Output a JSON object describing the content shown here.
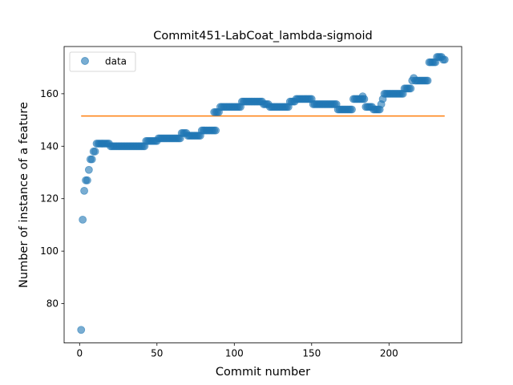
{
  "chart_data": {
    "type": "scatter",
    "title": "Commit451-LabCoat_lambda-sigmoid",
    "xlabel": "Commit number",
    "ylabel": "Number of instance of a feature",
    "xlim": [
      -10,
      247
    ],
    "ylim": [
      65,
      178
    ],
    "xticks": [
      0,
      50,
      100,
      150,
      200
    ],
    "yticks": [
      80,
      100,
      120,
      140,
      160
    ],
    "grid": false,
    "legend": {
      "placement": "top-left",
      "entries": [
        "data"
      ]
    },
    "series": [
      {
        "name": "data",
        "kind": "points",
        "color": "#1f77b4",
        "opacity": 0.6,
        "segments": [
          {
            "x": [
              1
            ],
            "y": 70
          },
          {
            "x": [
              2
            ],
            "y": 112
          },
          {
            "x": [
              3
            ],
            "y": 123
          },
          {
            "x": [
              4,
              5
            ],
            "y": 127
          },
          {
            "x": [
              6
            ],
            "y": 131
          },
          {
            "x": [
              7,
              8
            ],
            "y": 135
          },
          {
            "x": [
              9,
              10
            ],
            "y": 138
          },
          {
            "x": [
              11,
              19
            ],
            "y": 141
          },
          {
            "x": [
              20,
              42
            ],
            "y": 140
          },
          {
            "x": [
              43,
              50
            ],
            "y": 142
          },
          {
            "x": [
              51,
              65
            ],
            "y": 143
          },
          {
            "x": [
              66,
              69
            ],
            "y": 145
          },
          {
            "x": [
              70,
              78
            ],
            "y": 144
          },
          {
            "x": [
              79,
              88
            ],
            "y": 146
          },
          {
            "x": [
              87,
              90
            ],
            "y": 153
          },
          {
            "x": [
              91,
              104
            ],
            "y": 155
          },
          {
            "x": [
              105,
              118
            ],
            "y": 157
          },
          {
            "x": [
              119,
              122
            ],
            "y": 156
          },
          {
            "x": [
              123,
              135
            ],
            "y": 155
          },
          {
            "x": [
              136,
              139
            ],
            "y": 157
          },
          {
            "x": [
              140,
              150
            ],
            "y": 158
          },
          {
            "x": [
              151,
              166
            ],
            "y": 156
          },
          {
            "x": [
              167,
              176
            ],
            "y": 154
          },
          {
            "x": [
              177,
              184
            ],
            "y": 158
          },
          {
            "x": [
              183
            ],
            "y": 159
          },
          {
            "x": [
              185,
              189
            ],
            "y": 155
          },
          {
            "x": [
              190,
              194
            ],
            "y": 154
          },
          {
            "x": [
              195
            ],
            "y": 156
          },
          {
            "x": [
              196
            ],
            "y": 158
          },
          {
            "x": [
              197,
              209
            ],
            "y": 160
          },
          {
            "x": [
              210,
              214
            ],
            "y": 162
          },
          {
            "x": [
              215
            ],
            "y": 165
          },
          {
            "x": [
              216
            ],
            "y": 166
          },
          {
            "x": [
              217,
              225
            ],
            "y": 165
          },
          {
            "x": [
              226,
              230
            ],
            "y": 172
          },
          {
            "x": [
              231,
              234
            ],
            "y": 174
          },
          {
            "x": [
              235,
              236
            ],
            "y": 173
          }
        ]
      },
      {
        "name": "",
        "kind": "line",
        "color": "#ff7f0e",
        "x": [
          1,
          236
        ],
        "y": [
          151.5,
          151.5
        ]
      }
    ]
  }
}
